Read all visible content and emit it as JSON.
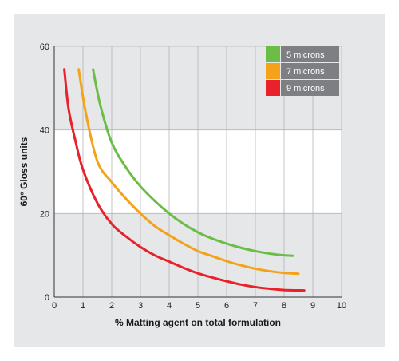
{
  "chart_data": {
    "type": "line",
    "xlabel": "% Matting agent on total formulation",
    "ylabel": "60° Gloss units",
    "xlim": [
      0,
      10
    ],
    "ylim": [
      0,
      60
    ],
    "x_ticks": [
      "0",
      "1",
      "2",
      "3",
      "4",
      "5",
      "6",
      "7",
      "8",
      "9",
      "10"
    ],
    "y_ticks": [
      "0",
      "20",
      "40",
      "60"
    ],
    "grid": "vertical",
    "highlight_band_y": [
      20,
      40
    ],
    "legend_position": "top-right",
    "series": [
      {
        "name": "5 microns",
        "color": "#6cbd45",
        "points": [
          [
            1.35,
            54.5
          ],
          [
            1.6,
            46
          ],
          [
            2,
            37
          ],
          [
            2.5,
            31
          ],
          [
            3,
            26.5
          ],
          [
            3.5,
            23
          ],
          [
            4,
            20
          ],
          [
            4.5,
            17.5
          ],
          [
            5,
            15.5
          ],
          [
            5.5,
            14
          ],
          [
            6,
            12.8
          ],
          [
            6.5,
            11.8
          ],
          [
            7,
            11
          ],
          [
            7.5,
            10.4
          ],
          [
            8,
            10
          ],
          [
            8.3,
            9.9
          ]
        ]
      },
      {
        "name": "7 microns",
        "color": "#f5a21b",
        "points": [
          [
            0.85,
            54.5
          ],
          [
            1.1,
            44
          ],
          [
            1.5,
            32.5
          ],
          [
            2,
            27.5
          ],
          [
            2.5,
            23.5
          ],
          [
            3,
            20
          ],
          [
            3.5,
            17
          ],
          [
            4,
            14.8
          ],
          [
            4.5,
            12.8
          ],
          [
            5,
            11
          ],
          [
            5.5,
            9.8
          ],
          [
            6,
            8.6
          ],
          [
            6.5,
            7.6
          ],
          [
            7,
            6.8
          ],
          [
            7.5,
            6.2
          ],
          [
            8,
            5.8
          ],
          [
            8.5,
            5.6
          ]
        ]
      },
      {
        "name": "9 microns",
        "color": "#e8212a",
        "points": [
          [
            0.35,
            54.5
          ],
          [
            0.5,
            45
          ],
          [
            0.75,
            37
          ],
          [
            1,
            30.5
          ],
          [
            1.5,
            22.5
          ],
          [
            2,
            17.5
          ],
          [
            2.5,
            14.5
          ],
          [
            3,
            12
          ],
          [
            3.5,
            10
          ],
          [
            4,
            8.5
          ],
          [
            4.5,
            7
          ],
          [
            5,
            5.7
          ],
          [
            5.5,
            4.7
          ],
          [
            6,
            3.8
          ],
          [
            6.5,
            3
          ],
          [
            7,
            2.4
          ],
          [
            7.5,
            2
          ],
          [
            8,
            1.7
          ],
          [
            8.7,
            1.6
          ]
        ]
      }
    ]
  }
}
